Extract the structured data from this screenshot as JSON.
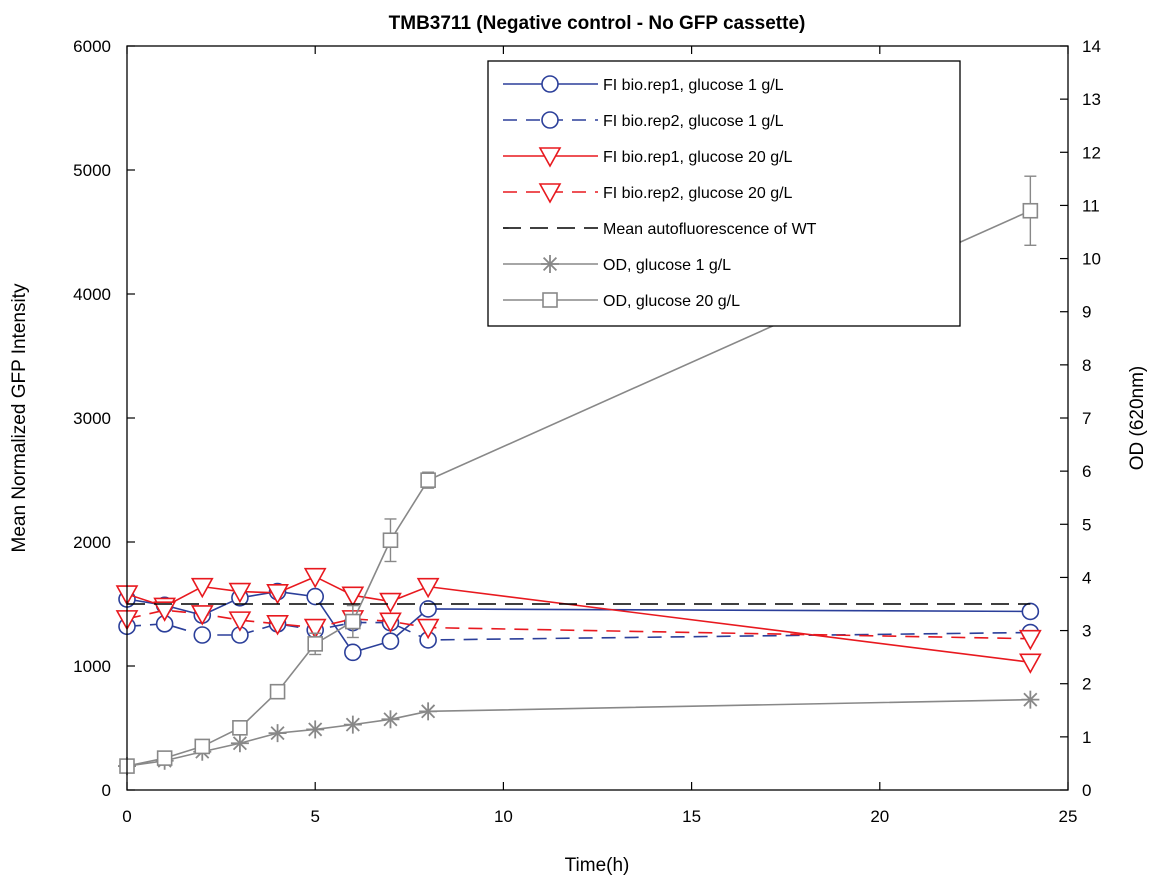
{
  "chart_data": {
    "type": "line",
    "title": "TMB3711 (Negative control - No GFP cassette)",
    "xlabel": "Time(h)",
    "ylabel": "Mean Normalized GFP Intensity",
    "y2label": "OD (620nm)",
    "xlim": [
      0,
      25
    ],
    "ylim": [
      0,
      6000
    ],
    "y2lim": [
      0,
      14
    ],
    "xticks": [
      0,
      5,
      10,
      15,
      20,
      25
    ],
    "yticks": [
      0,
      1000,
      2000,
      3000,
      4000,
      5000,
      6000
    ],
    "y2ticks": [
      0,
      1,
      2,
      3,
      4,
      5,
      6,
      7,
      8,
      9,
      10,
      11,
      12,
      13,
      14
    ],
    "grid": false,
    "legend_position": "top-right",
    "series": [
      {
        "name": "FI bio.rep1, glucose 1 g/L",
        "axis": "left",
        "color": "#2b3f9a",
        "dash": "solid",
        "marker": "circle",
        "x": [
          0,
          1,
          2,
          3,
          4,
          5,
          6,
          7,
          8,
          24
        ],
        "y": [
          1540,
          1490,
          1410,
          1550,
          1600,
          1560,
          1110,
          1200,
          1460,
          1440
        ]
      },
      {
        "name": "FI bio.rep2, glucose 1 g/L",
        "axis": "left",
        "color": "#2b3f9a",
        "dash": "dashed",
        "marker": "circle",
        "x": [
          0,
          1,
          2,
          3,
          4,
          5,
          6,
          7,
          8,
          24
        ],
        "y": [
          1320,
          1340,
          1250,
          1250,
          1340,
          1290,
          1350,
          1350,
          1210,
          1270
        ]
      },
      {
        "name": "FI bio.rep1, glucose 20 g/L",
        "axis": "left",
        "color": "#e8191f",
        "dash": "solid",
        "marker": "triangle-down",
        "x": [
          0,
          1,
          2,
          3,
          4,
          5,
          6,
          7,
          8,
          24
        ],
        "y": [
          1580,
          1480,
          1640,
          1600,
          1590,
          1720,
          1570,
          1520,
          1640,
          1030
        ]
      },
      {
        "name": "FI bio.rep2, glucose 20 g/L",
        "axis": "left",
        "color": "#e8191f",
        "dash": "dashed",
        "marker": "triangle-down",
        "x": [
          0,
          1,
          2,
          3,
          4,
          5,
          6,
          7,
          8,
          24
        ],
        "y": [
          1380,
          1450,
          1420,
          1370,
          1340,
          1310,
          1380,
          1360,
          1310,
          1220
        ]
      },
      {
        "name": "Mean autofluorescence of WT",
        "axis": "left",
        "color": "#000000",
        "dash": "dashed-long",
        "marker": "none",
        "x": [
          0,
          24
        ],
        "y": [
          1500,
          1500
        ]
      },
      {
        "name": "OD, glucose 1 g/L",
        "axis": "right",
        "color": "#888888",
        "dash": "solid",
        "marker": "asterisk",
        "x": [
          0,
          1,
          2,
          3,
          4,
          5,
          6,
          7,
          8,
          24
        ],
        "y": [
          0.45,
          0.55,
          0.72,
          0.88,
          1.07,
          1.14,
          1.23,
          1.33,
          1.48,
          1.7
        ],
        "err": [
          0,
          0,
          0,
          0,
          0,
          0,
          0,
          0,
          0,
          0
        ]
      },
      {
        "name": "OD, glucose 20 g/L",
        "axis": "right",
        "color": "#888888",
        "dash": "solid",
        "marker": "square",
        "x": [
          0,
          1,
          2,
          3,
          4,
          5,
          6,
          7,
          8,
          24
        ],
        "y": [
          0.45,
          0.6,
          0.82,
          1.17,
          1.85,
          2.75,
          3.17,
          4.7,
          5.83,
          10.9
        ],
        "err": [
          0,
          0,
          0,
          0,
          0,
          0.2,
          0.3,
          0.4,
          0.15,
          0.65
        ]
      }
    ]
  }
}
